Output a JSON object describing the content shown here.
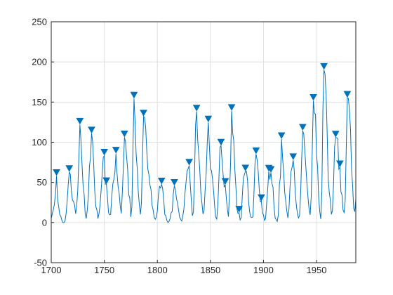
{
  "chart_data": {
    "type": "line",
    "color": "#0072bd",
    "grid": true,
    "xlim": [
      1700,
      1987
    ],
    "ylim": [
      -50,
      250
    ],
    "xticks": [
      1700,
      1750,
      1800,
      1850,
      1900,
      1950
    ],
    "yticks": [
      -50,
      0,
      50,
      100,
      150,
      200,
      250
    ],
    "x": [
      1700,
      1701,
      1702,
      1703,
      1704,
      1705,
      1706,
      1707,
      1708,
      1709,
      1710,
      1711,
      1712,
      1713,
      1714,
      1715,
      1716,
      1717,
      1718,
      1719,
      1720,
      1721,
      1722,
      1723,
      1724,
      1725,
      1726,
      1727,
      1728,
      1729,
      1730,
      1731,
      1732,
      1733,
      1734,
      1735,
      1736,
      1737,
      1738,
      1739,
      1740,
      1741,
      1742,
      1743,
      1744,
      1745,
      1746,
      1747,
      1748,
      1749,
      1750,
      1751,
      1752,
      1753,
      1754,
      1755,
      1756,
      1757,
      1758,
      1759,
      1760,
      1761,
      1762,
      1763,
      1764,
      1765,
      1766,
      1767,
      1768,
      1769,
      1770,
      1771,
      1772,
      1773,
      1774,
      1775,
      1776,
      1777,
      1778,
      1779,
      1780,
      1781,
      1782,
      1783,
      1784,
      1785,
      1786,
      1787,
      1788,
      1789,
      1790,
      1791,
      1792,
      1793,
      1794,
      1795,
      1796,
      1797,
      1798,
      1799,
      1800,
      1801,
      1802,
      1803,
      1804,
      1805,
      1806,
      1807,
      1808,
      1809,
      1810,
      1811,
      1812,
      1813,
      1814,
      1815,
      1816,
      1817,
      1818,
      1819,
      1820,
      1821,
      1822,
      1823,
      1824,
      1825,
      1826,
      1827,
      1828,
      1829,
      1830,
      1831,
      1832,
      1833,
      1834,
      1835,
      1836,
      1837,
      1838,
      1839,
      1840,
      1841,
      1842,
      1843,
      1844,
      1845,
      1846,
      1847,
      1848,
      1849,
      1850,
      1851,
      1852,
      1853,
      1854,
      1855,
      1856,
      1857,
      1858,
      1859,
      1860,
      1861,
      1862,
      1863,
      1864,
      1865,
      1866,
      1867,
      1868,
      1869,
      1870,
      1871,
      1872,
      1873,
      1874,
      1875,
      1876,
      1877,
      1878,
      1879,
      1880,
      1881,
      1882,
      1883,
      1884,
      1885,
      1886,
      1887,
      1888,
      1889,
      1890,
      1891,
      1892,
      1893,
      1894,
      1895,
      1896,
      1897,
      1898,
      1899,
      1900,
      1901,
      1902,
      1903,
      1904,
      1905,
      1906,
      1907,
      1908,
      1909,
      1910,
      1911,
      1912,
      1913,
      1914,
      1915,
      1916,
      1917,
      1918,
      1919,
      1920,
      1921,
      1922,
      1923,
      1924,
      1925,
      1926,
      1927,
      1928,
      1929,
      1930,
      1931,
      1932,
      1933,
      1934,
      1935,
      1936,
      1937,
      1938,
      1939,
      1940,
      1941,
      1942,
      1943,
      1944,
      1945,
      1946,
      1947,
      1948,
      1949,
      1950,
      1951,
      1952,
      1953,
      1954,
      1955,
      1956,
      1957,
      1958,
      1959,
      1960,
      1961,
      1962,
      1963,
      1964,
      1965,
      1966,
      1967,
      1968,
      1969,
      1970,
      1971,
      1972,
      1973,
      1974,
      1975,
      1976,
      1977,
      1978,
      1979,
      1980,
      1981,
      1982,
      1983,
      1984,
      1985,
      1986,
      1987
    ],
    "values": [
      5,
      11,
      16,
      23,
      36,
      58,
      29,
      20,
      10,
      8,
      3,
      0,
      0,
      2,
      11,
      27,
      47,
      63,
      60,
      39,
      28,
      26,
      22,
      11,
      21,
      40,
      78,
      122,
      103,
      73,
      47,
      35,
      11,
      5,
      16,
      34,
      70,
      81,
      111,
      101,
      73,
      40,
      20,
      16,
      5,
      11,
      22,
      40,
      60,
      80.9,
      83.4,
      47.7,
      47.8,
      30.7,
      12.2,
      9.6,
      10.2,
      32.4,
      47.6,
      54,
      62.9,
      85.9,
      61.2,
      45.1,
      36.4,
      20.9,
      11.4,
      37.8,
      69.8,
      106.1,
      100.8,
      81.6,
      66.5,
      34.8,
      30.6,
      7,
      19.8,
      92.5,
      154.4,
      125.9,
      84.8,
      68.1,
      38.5,
      22.8,
      10.2,
      24.1,
      82.9,
      132,
      130.9,
      118.1,
      89.9,
      66.6,
      60,
      46.9,
      41,
      21.3,
      16,
      6.4,
      4.1,
      6.8,
      14.5,
      34,
      45,
      43.1,
      47.5,
      42.2,
      28.1,
      10.1,
      8.1,
      2.5,
      0,
      1.4,
      5,
      12.2,
      13.9,
      35.4,
      45.8,
      41.1,
      30.1,
      23.9,
      15.6,
      6.6,
      4,
      1.8,
      8.5,
      16.6,
      36.3,
      49.6,
      64.2,
      67,
      70.9,
      47.8,
      27.5,
      8.5,
      13.2,
      56.9,
      121.5,
      138.3,
      103.2,
      85.7,
      64.6,
      36.7,
      24.2,
      10.7,
      15,
      40.1,
      61.5,
      98.5,
      124.7,
      96.3,
      66.6,
      64.5,
      54.1,
      39,
      20.6,
      6.7,
      4.3,
      22.7,
      54.8,
      93.8,
      95.8,
      77.2,
      59.1,
      44,
      47,
      30.5,
      16.3,
      7.3,
      37.6,
      74,
      139,
      111.2,
      101.6,
      66.2,
      44.7,
      17,
      11.3,
      12.4,
      3.4,
      6,
      32.3,
      54.3,
      59.7,
      63.7,
      63.5,
      52.2,
      25.4,
      13.1,
      6.8,
      6.3,
      7.1,
      35.6,
      73,
      85.1,
      78,
      64,
      41.8,
      26.2,
      26.7,
      12.1,
      9.5,
      2.7,
      5,
      24.4,
      42,
      63.5,
      53.8,
      62,
      48.5,
      43.9,
      18.6,
      5.7,
      3.6,
      1.4,
      9.6,
      47.4,
      57.1,
      103.9,
      80.6,
      63.6,
      37.6,
      26.1,
      14.2,
      5.8,
      16.7,
      44.3,
      63.9,
      69,
      77.8,
      64.9,
      35.7,
      21.2,
      11.1,
      5.7,
      8.7,
      36.1,
      79.7,
      114.4,
      109.6,
      88.8,
      67.8,
      47.5,
      30.6,
      16.3,
      9.6,
      33.2,
      92.6,
      151.6,
      136.3,
      134.7,
      83.9,
      69.4,
      31.5,
      13.9,
      4.4,
      38,
      141.7,
      190.2,
      184.8,
      159,
      112.3,
      53.9,
      37.5,
      27.9,
      10.2,
      15.1,
      47,
      93.8,
      105.9,
      105.5,
      104.5,
      66.6,
      68.9,
      38,
      34.5,
      15.5,
      12.6,
      27.5,
      92.5,
      155.4,
      154.6,
      140.4,
      115.9,
      66.6,
      45.9,
      17.9,
      13.4,
      29.2
    ],
    "peaks": {
      "x": [
        1705,
        1717,
        1727,
        1738,
        1750,
        1752,
        1761,
        1769,
        1778,
        1787,
        1804,
        1816,
        1830,
        1837,
        1848,
        1860,
        1864,
        1870,
        1877,
        1883,
        1893,
        1898,
        1905,
        1907,
        1917,
        1928,
        1937,
        1947,
        1957,
        1968,
        1972,
        1979
      ],
      "values": [
        58,
        63,
        122,
        111,
        83.4,
        47.8,
        85.9,
        106.1,
        154.4,
        132,
        47.5,
        45.8,
        70.9,
        138.3,
        124.7,
        95.8,
        47,
        139,
        12.4,
        63.7,
        85.1,
        26.7,
        63.5,
        62,
        103.9,
        77.8,
        114.4,
        151.6,
        190.2,
        105.9,
        68.9,
        155.4
      ]
    }
  }
}
